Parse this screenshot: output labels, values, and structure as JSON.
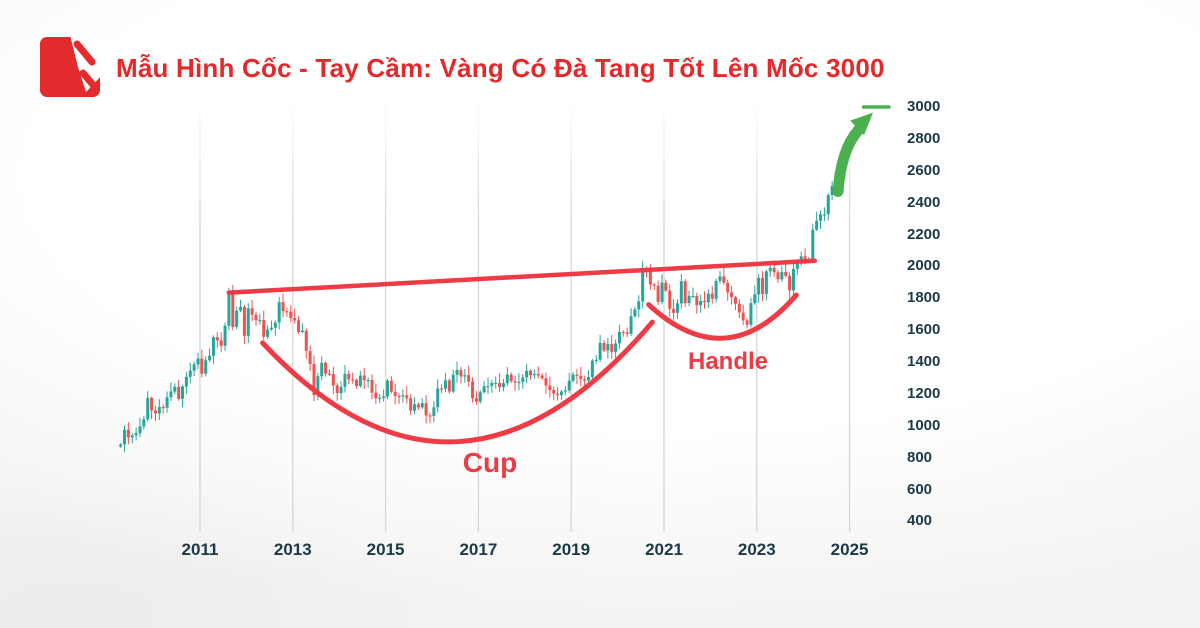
{
  "header": {
    "title": "Mẫu Hình Cốc - Tay Cầm: Vàng Có Đà Tang Tốt Lên Mốc 3000",
    "brand_icon": "pencil-chart-logo",
    "brand_color": "#e32a2c"
  },
  "chart_data": {
    "type": "candlestick",
    "x_ticks": [
      2011,
      2013,
      2015,
      2017,
      2019,
      2021,
      2023,
      2025
    ],
    "y_ticks": [
      400,
      600,
      800,
      1000,
      1200,
      1400,
      1600,
      1800,
      2000,
      2200,
      2400,
      2600,
      2800,
      3000
    ],
    "y_range": [
      300,
      3050
    ],
    "grid": "vertical-only",
    "series_start_year": 2009.29,
    "interval_months": 1,
    "first_open": 870,
    "closes": [
      883,
      975,
      927,
      939,
      953,
      996,
      1040,
      1175,
      1096,
      1078,
      1118,
      1113,
      1179,
      1215,
      1244,
      1169,
      1246,
      1307,
      1346,
      1385,
      1421,
      1327,
      1411,
      1439,
      1556,
      1536,
      1502,
      1628,
      1826,
      1620,
      1722,
      1746,
      1564,
      1737,
      1696,
      1662,
      1664,
      1558,
      1604,
      1615,
      1648,
      1776,
      1719,
      1715,
      1676,
      1661,
      1588,
      1597,
      1469,
      1387,
      1192,
      1311,
      1395,
      1327,
      1324,
      1253,
      1205,
      1244,
      1326,
      1291,
      1288,
      1250,
      1315,
      1285,
      1287,
      1208,
      1173,
      1175,
      1184,
      1283,
      1213,
      1187,
      1184,
      1191,
      1172,
      1095,
      1135,
      1115,
      1142,
      1065,
      1061,
      1116,
      1234,
      1232,
      1285,
      1215,
      1320,
      1351,
      1309,
      1317,
      1277,
      1173,
      1152,
      1210,
      1248,
      1249,
      1268,
      1269,
      1242,
      1267,
      1321,
      1280,
      1271,
      1275,
      1303,
      1345,
      1318,
      1325,
      1315,
      1298,
      1253,
      1224,
      1201,
      1192,
      1215,
      1222,
      1282,
      1321,
      1313,
      1292,
      1283,
      1306,
      1409,
      1414,
      1520,
      1472,
      1513,
      1464,
      1517,
      1589,
      1586,
      1577,
      1687,
      1730,
      1781,
      1976,
      1968,
      1886,
      1879,
      1777,
      1898,
      1848,
      1734,
      1708,
      1768,
      1907,
      1770,
      1814,
      1814,
      1757,
      1783,
      1775,
      1829,
      1797,
      1909,
      1937,
      1897,
      1837,
      1807,
      1766,
      1711,
      1661,
      1634,
      1769,
      1824,
      1928,
      1827,
      1969,
      1990,
      1963,
      1919,
      1965,
      1940,
      1849,
      1984,
      2036,
      2063,
      2040,
      2044,
      2230,
      2286,
      2327,
      2327,
      2448,
      2503,
      2560,
      2605
    ],
    "annotations": {
      "trendline": {
        "t1": 2011.62,
        "p1": 1835,
        "t2": 2024.25,
        "p2": 2035
      },
      "cup": {
        "label": "Cup",
        "start": {
          "t": 2012.35,
          "p": 1520
        },
        "bottom": {
          "t": 2016.55,
          "p": 900
        },
        "end": {
          "t": 2020.75,
          "p": 1650
        }
      },
      "handle": {
        "label": "Handle",
        "start": {
          "t": 2020.67,
          "p": 1760
        },
        "bottom": {
          "t": 2022.3,
          "p": 1550
        },
        "end": {
          "t": 2023.85,
          "p": 1820
        }
      },
      "breakout_arrow": {
        "t1": 2024.75,
        "p1": 2470,
        "t2": 2025.38,
        "p2": 2930
      },
      "target_dash": {
        "t1": 2025.3,
        "t2": 2025.85,
        "price": 3000
      }
    },
    "colors": {
      "up": "#26a69a",
      "down": "#ef5350",
      "annotation": "#ee3b46",
      "arrow": "#4cb051",
      "grid": "#d8d8d8",
      "axis_text": "#1c3947"
    }
  }
}
